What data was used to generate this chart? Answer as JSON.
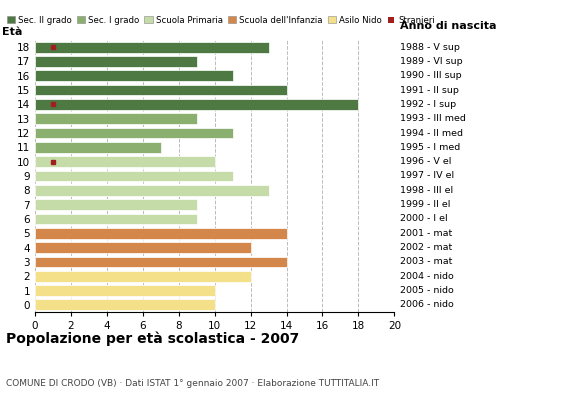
{
  "ages": [
    18,
    17,
    16,
    15,
    14,
    13,
    12,
    11,
    10,
    9,
    8,
    7,
    6,
    5,
    4,
    3,
    2,
    1,
    0
  ],
  "values": [
    13,
    9,
    11,
    14,
    18,
    9,
    11,
    7,
    10,
    11,
    13,
    9,
    9,
    14,
    12,
    14,
    12,
    10,
    10
  ],
  "stranieri_x": [
    1,
    0,
    0,
    0,
    1,
    0,
    0,
    0,
    1,
    0,
    0,
    0,
    0,
    0,
    0,
    0,
    0,
    0,
    0
  ],
  "bar_colors": [
    "#4f7942",
    "#4f7942",
    "#4f7942",
    "#4f7942",
    "#4f7942",
    "#8aaf6e",
    "#8aaf6e",
    "#8aaf6e",
    "#c5dba8",
    "#c5dba8",
    "#c5dba8",
    "#c5dba8",
    "#c5dba8",
    "#d4874a",
    "#d4874a",
    "#d4874a",
    "#f5e08a",
    "#f5e08a",
    "#f5e08a"
  ],
  "anno_labels": [
    "1988 - V sup",
    "1989 - VI sup",
    "1990 - III sup",
    "1991 - II sup",
    "1992 - I sup",
    "1993 - III med",
    "1994 - II med",
    "1995 - I med",
    "1996 - V el",
    "1997 - IV el",
    "1998 - III el",
    "1999 - II el",
    "2000 - I el",
    "2001 - mat",
    "2002 - mat",
    "2003 - mat",
    "2004 - nido",
    "2005 - nido",
    "2006 - nido"
  ],
  "legend_labels": [
    "Sec. II grado",
    "Sec. I grado",
    "Scuola Primaria",
    "Scuola dell'Infanzia",
    "Asilo Nido",
    "Stranieri"
  ],
  "legend_colors": [
    "#4f7942",
    "#8aaf6e",
    "#c5dba8",
    "#d4874a",
    "#f5e08a",
    "#a02020"
  ],
  "title": "Popolazione per età scolastica - 2007",
  "subtitle": "COMUNE DI CRODO (VB) · Dati ISTAT 1° gennaio 2007 · Elaborazione TUTTITALIA.IT",
  "label_eta": "Età",
  "label_anno": "Anno di nascita",
  "xlim": [
    0,
    20
  ],
  "xticks": [
    0,
    2,
    4,
    6,
    8,
    10,
    12,
    14,
    16,
    18,
    20
  ],
  "stranieri_color": "#a02020",
  "background_color": "#ffffff",
  "grid_color": "#bbbbbb"
}
